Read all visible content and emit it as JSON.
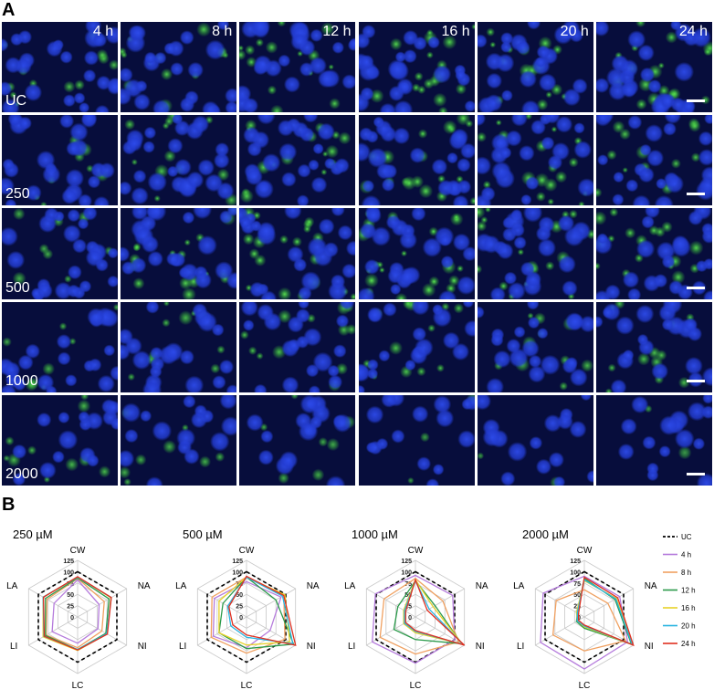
{
  "panel_a": {
    "letter": "A",
    "time_labels": [
      "4 h",
      "8 h",
      "12 h",
      "16 h",
      "20 h",
      "24 h"
    ],
    "row_labels": [
      "UC",
      "250",
      "500",
      "1000",
      "2000"
    ],
    "description_colors": {
      "nuclei": "#2a46e6",
      "stain": "#46d23c",
      "background": "#070d3c"
    }
  },
  "panel_b": {
    "letter": "B"
  },
  "chart_data": [
    {
      "type": "radar",
      "title": "250 µM",
      "axes": [
        "CW",
        "NA",
        "NI",
        "LC",
        "LI",
        "LA"
      ],
      "ticks": [
        0,
        25,
        50,
        75,
        100,
        125
      ],
      "range": [
        0,
        125
      ],
      "series": [
        {
          "name": "UC",
          "color": "#000000",
          "dashed": true,
          "values": [
            100,
            100,
            100,
            100,
            100,
            100
          ]
        },
        {
          "name": "4 h",
          "color": "#b57bdc",
          "values": [
            82,
            55,
            52,
            58,
            65,
            60
          ]
        },
        {
          "name": "8 h",
          "color": "#f0a060",
          "values": [
            85,
            68,
            62,
            68,
            80,
            78
          ]
        },
        {
          "name": "12 h",
          "color": "#2a9a4a",
          "values": [
            86,
            80,
            72,
            72,
            82,
            82
          ]
        },
        {
          "name": "16 h",
          "color": "#e8d22a",
          "values": [
            88,
            85,
            75,
            74,
            88,
            88
          ]
        },
        {
          "name": "20 h",
          "color": "#28b4e0",
          "values": [
            88,
            86,
            74,
            72,
            86,
            88
          ]
        },
        {
          "name": "24 h",
          "color": "#e03020",
          "values": [
            89,
            86,
            76,
            73,
            85,
            87
          ]
        }
      ]
    },
    {
      "type": "radar",
      "title": "500 µM",
      "axes": [
        "CW",
        "NA",
        "NI",
        "LC",
        "LI",
        "LA"
      ],
      "ticks": [
        0,
        25,
        50,
        75,
        100,
        125
      ],
      "range": [
        0,
        125
      ],
      "series": [
        {
          "name": "UC",
          "color": "#000000",
          "dashed": true,
          "values": [
            100,
            100,
            100,
            100,
            100,
            100
          ]
        },
        {
          "name": "4 h",
          "color": "#b57bdc",
          "values": [
            78,
            88,
            60,
            68,
            85,
            82
          ]
        },
        {
          "name": "8 h",
          "color": "#f0a060",
          "values": [
            88,
            95,
            98,
            80,
            90,
            88
          ]
        },
        {
          "name": "12 h",
          "color": "#2a9a4a",
          "values": [
            88,
            75,
            120,
            70,
            70,
            60
          ]
        },
        {
          "name": "16 h",
          "color": "#e8d22a",
          "values": [
            88,
            98,
            110,
            62,
            70,
            70
          ]
        },
        {
          "name": "20 h",
          "color": "#28b4e0",
          "values": [
            88,
            92,
            118,
            45,
            40,
            48
          ]
        },
        {
          "name": "24 h",
          "color": "#e03020",
          "values": [
            90,
            95,
            125,
            40,
            35,
            45
          ]
        }
      ]
    },
    {
      "type": "radar",
      "title": "1000 µM",
      "axes": [
        "CW",
        "NA",
        "NI",
        "LC",
        "LI",
        "LA"
      ],
      "ticks": [
        0,
        25,
        50,
        75,
        100,
        125
      ],
      "range": [
        0,
        125
      ],
      "series": [
        {
          "name": "UC",
          "color": "#000000",
          "dashed": true,
          "values": [
            100,
            100,
            100,
            100,
            100,
            100
          ]
        },
        {
          "name": "4 h",
          "color": "#b57bdc",
          "values": [
            92,
            95,
            100,
            102,
            110,
            102
          ]
        },
        {
          "name": "8 h",
          "color": "#f0a060",
          "values": [
            85,
            70,
            110,
            82,
            90,
            80
          ]
        },
        {
          "name": "12 h",
          "color": "#2a9a4a",
          "values": [
            80,
            50,
            118,
            50,
            55,
            45
          ]
        },
        {
          "name": "16 h",
          "color": "#e8d22a",
          "values": [
            82,
            45,
            120,
            35,
            30,
            30
          ]
        },
        {
          "name": "20 h",
          "color": "#28b4e0",
          "values": [
            80,
            35,
            122,
            32,
            28,
            28
          ]
        },
        {
          "name": "24 h",
          "color": "#e03020",
          "values": [
            82,
            30,
            125,
            30,
            25,
            25
          ]
        }
      ]
    },
    {
      "type": "radar",
      "title": "2000 µM",
      "axes": [
        "CW",
        "NA",
        "NI",
        "LC",
        "LI",
        "LA"
      ],
      "ticks": [
        0,
        25,
        50,
        75,
        100,
        125
      ],
      "range": [
        0,
        125
      ],
      "series": [
        {
          "name": "UC",
          "color": "#000000",
          "dashed": true,
          "values": [
            100,
            100,
            100,
            100,
            100,
            100
          ]
        },
        {
          "name": "4 h",
          "color": "#b57bdc",
          "values": [
            90,
            90,
            110,
            115,
            112,
            105
          ]
        },
        {
          "name": "8 h",
          "color": "#f0a060",
          "values": [
            60,
            60,
            105,
            75,
            80,
            72
          ]
        },
        {
          "name": "12 h",
          "color": "#2a9a4a",
          "values": [
            85,
            78,
            120,
            25,
            20,
            18
          ]
        },
        {
          "name": "16 h",
          "color": "#e8d22a",
          "values": [
            80,
            82,
            122,
            22,
            18,
            20
          ]
        },
        {
          "name": "20 h",
          "color": "#28b4e0",
          "values": [
            82,
            80,
            122,
            20,
            18,
            18
          ]
        },
        {
          "name": "24 h",
          "color": "#e03020",
          "values": [
            88,
            85,
            125,
            18,
            15,
            15
          ]
        }
      ]
    }
  ]
}
